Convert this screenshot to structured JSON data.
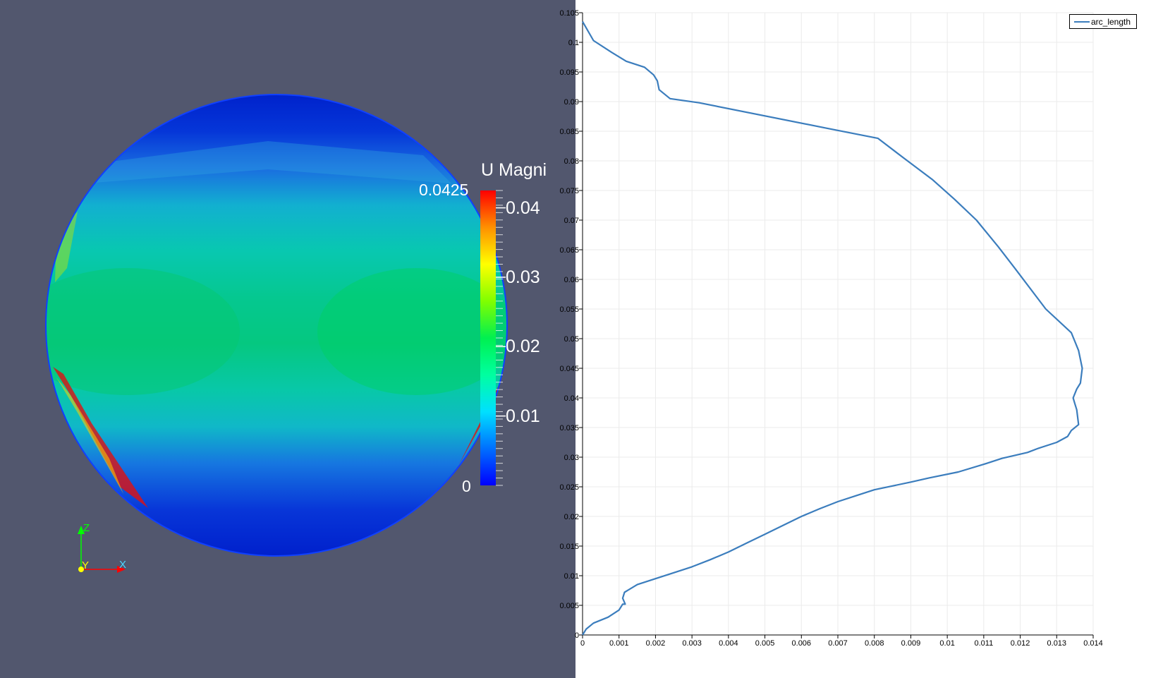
{
  "render_view": {
    "background": "#52576e",
    "colorbar": {
      "title": "U Magni",
      "max_label": "0.0425",
      "min_label": "0",
      "tick_labels": [
        "0.04",
        "0.03",
        "0.02",
        "0.01"
      ],
      "tick_values": [
        0.04,
        0.03,
        0.02,
        0.01
      ],
      "range": [
        0,
        0.0425
      ],
      "colormap": [
        "#0000ff",
        "#00a0ff",
        "#00ffff",
        "#00ff80",
        "#00ff00",
        "#80ff00",
        "#ffff00",
        "#ff8000",
        "#ff0000"
      ]
    },
    "axes_triad": {
      "z_label": "Z",
      "y_label": "Y",
      "x_label": "X",
      "z_color": "#00ff00",
      "x_color": "#ff0000",
      "y_color": "#ffff00"
    }
  },
  "chart_data": {
    "type": "line",
    "title": "",
    "xlabel": "",
    "ylabel": "",
    "xlim": [
      0,
      0.014
    ],
    "ylim": [
      0,
      0.105
    ],
    "x_ticks": [
      "0",
      "0.001",
      "0.002",
      "0.003",
      "0.004",
      "0.005",
      "0.006",
      "0.007",
      "0.008",
      "0.009",
      "0.01",
      "0.011",
      "0.012",
      "0.013",
      "0.014"
    ],
    "y_ticks": [
      "0",
      "0.005",
      "0.01",
      "0.015",
      "0.02",
      "0.025",
      "0.03",
      "0.035",
      "0.04",
      "0.045",
      "0.05",
      "0.055",
      "0.06",
      "0.065",
      "0.07",
      "0.075",
      "0.08",
      "0.085",
      "0.09",
      "0.095",
      "0.1",
      "0.105"
    ],
    "grid": true,
    "legend_position": "top-right",
    "series": [
      {
        "name": "arc_length",
        "color": "#3b7dbd",
        "x": [
          0,
          0.0001,
          0.0003,
          0.0007,
          0.001,
          0.0011,
          0.00117,
          0.0011,
          0.00115,
          0.0015,
          0.002,
          0.0025,
          0.003,
          0.0035,
          0.004,
          0.0045,
          0.005,
          0.0055,
          0.006,
          0.0065,
          0.007,
          0.0075,
          0.008,
          0.009,
          0.0095,
          0.0103,
          0.011,
          0.0115,
          0.0122,
          0.0125,
          0.013,
          0.0133,
          0.0134,
          0.0136,
          0.01355,
          0.0135,
          0.01345,
          0.01355,
          0.01365,
          0.0137,
          0.0136,
          0.0134,
          0.0127,
          0.0119,
          0.0114,
          0.0108,
          0.0102,
          0.0096,
          0.0088,
          0.0081,
          0.0067,
          0.0032,
          0.0024,
          0.0021,
          0.00205,
          0.00195,
          0.0017,
          0.0012,
          0.0008,
          0.0003,
          0
        ],
        "y": [
          0,
          0.001,
          0.002,
          0.003,
          0.0042,
          0.0052,
          0.0052,
          0.0062,
          0.0072,
          0.0085,
          0.0095,
          0.0105,
          0.0115,
          0.0127,
          0.014,
          0.0155,
          0.017,
          0.0185,
          0.02,
          0.0213,
          0.0225,
          0.0235,
          0.0245,
          0.0258,
          0.0265,
          0.0275,
          0.0288,
          0.0298,
          0.0308,
          0.0315,
          0.0325,
          0.0335,
          0.0345,
          0.0355,
          0.038,
          0.039,
          0.04,
          0.0415,
          0.0425,
          0.045,
          0.048,
          0.051,
          0.055,
          0.0615,
          0.0655,
          0.07,
          0.0735,
          0.0768,
          0.0805,
          0.0838,
          0.0855,
          0.0898,
          0.0905,
          0.092,
          0.0935,
          0.0945,
          0.0958,
          0.0968,
          0.0983,
          0.1003,
          0.1035
        ]
      }
    ]
  }
}
